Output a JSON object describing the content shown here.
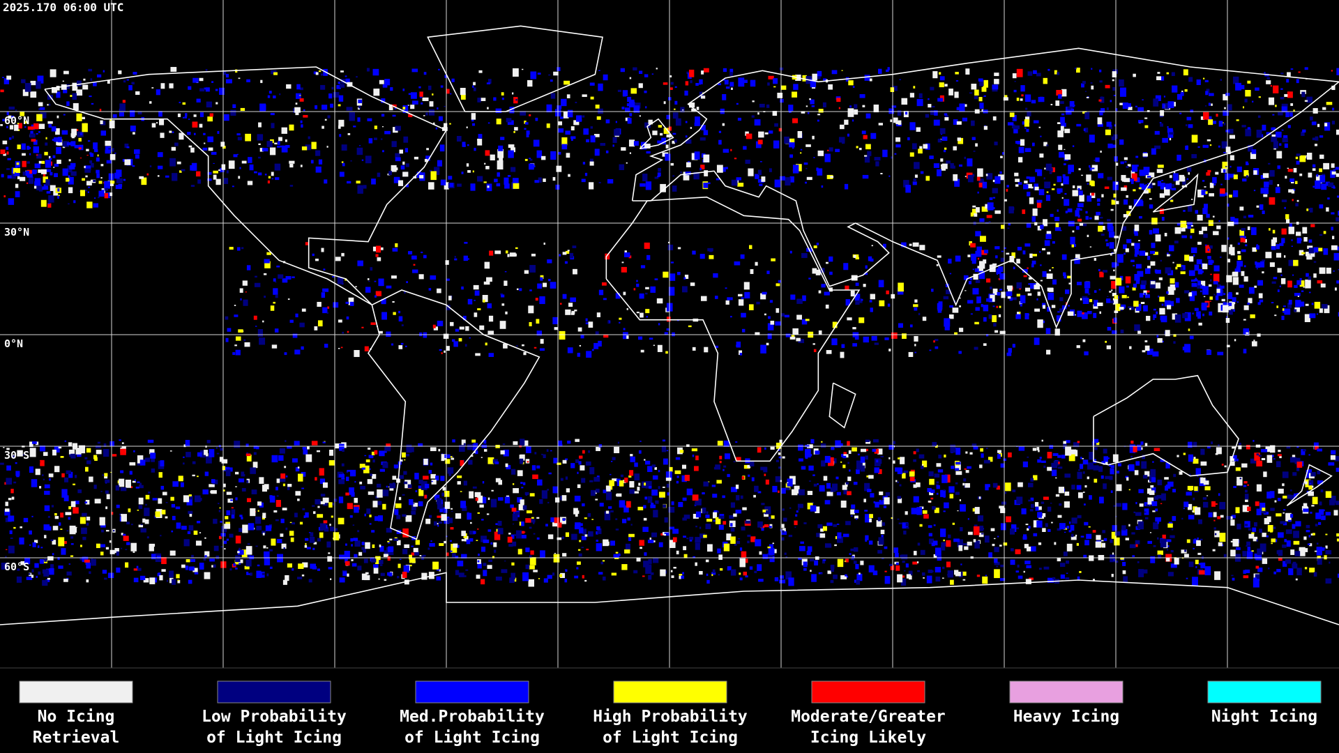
{
  "header": {
    "timestamp": "2025.170 06:00 UTC"
  },
  "map": {
    "lat_labels": [
      "60°N",
      "30°N",
      "0°N",
      "30°S",
      "60°S"
    ]
  },
  "legend": {
    "items": [
      {
        "lines": [
          "No Icing",
          "Retrieval"
        ],
        "color": "#f0f0f0"
      },
      {
        "lines": [
          "Low Probability",
          "of Light Icing"
        ],
        "color": "#000080"
      },
      {
        "lines": [
          "Med.Probability",
          "of Light Icing"
        ],
        "color": "#0000ff"
      },
      {
        "lines": [
          "High Probability",
          "of Light Icing"
        ],
        "color": "#ffff00"
      },
      {
        "lines": [
          "Moderate/Greater",
          "Icing Likely"
        ],
        "color": "#ff0000"
      },
      {
        "lines": [
          "Heavy Icing"
        ],
        "color": "#e8a0e0"
      },
      {
        "lines": [
          "Night Icing"
        ],
        "color": "#00ffff"
      }
    ]
  }
}
